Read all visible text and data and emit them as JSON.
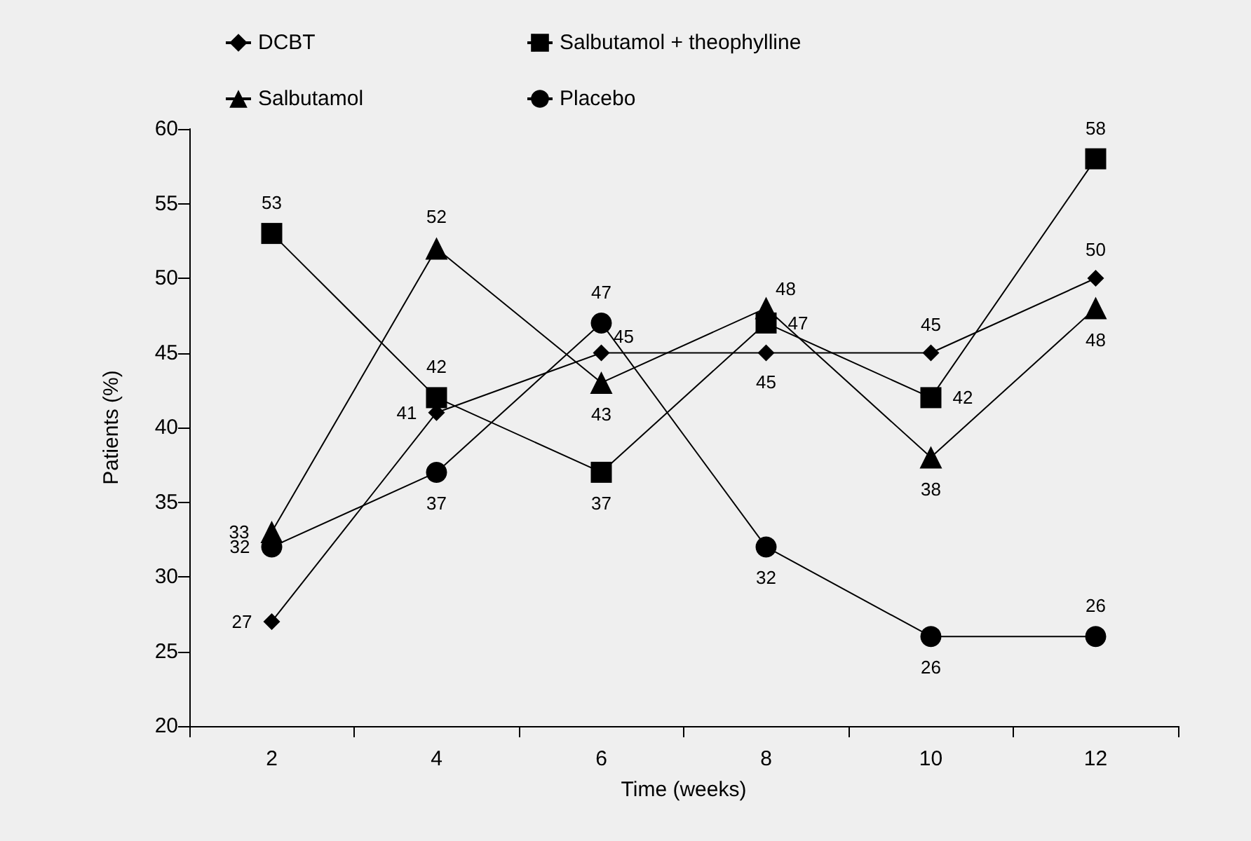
{
  "chart_data": {
    "type": "line",
    "xlabel": "Time (weeks)",
    "ylabel": "Patients (%)",
    "categories": [
      "2",
      "4",
      "6",
      "8",
      "10",
      "12"
    ],
    "series": [
      {
        "name": "DCBT",
        "color": "#000000",
        "marker": "diamond",
        "values": [
          27,
          41,
          45,
          45,
          45,
          50
        ]
      },
      {
        "name": "Salbutamol + theophylline",
        "color": "#000000",
        "marker": "square",
        "values": [
          53,
          42,
          37,
          47,
          42,
          58
        ]
      },
      {
        "name": "Salbutamol",
        "color": "#000000",
        "marker": "triangle",
        "values": [
          33,
          52,
          43,
          48,
          38,
          48
        ]
      },
      {
        "name": "Placebo",
        "color": "#000000",
        "marker": "circle",
        "values": [
          32,
          37,
          47,
          32,
          26,
          26
        ]
      }
    ],
    "ylim": [
      20,
      60
    ],
    "yticks": [
      20,
      25,
      30,
      35,
      40,
      45,
      50,
      55,
      60
    ],
    "grid": false,
    "legend": "top",
    "data_labels": true,
    "line_style": "solid"
  }
}
